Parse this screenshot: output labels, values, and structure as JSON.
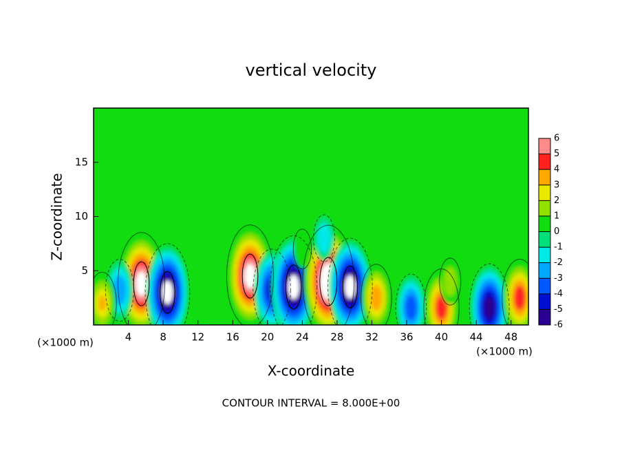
{
  "chart_data": {
    "type": "contour",
    "title": "vertical velocity",
    "x_label": "X-coordinate",
    "y_label": "Z-coordinate",
    "x_unit_left": "(×1000 m)",
    "x_unit_right": "(×1000 m)",
    "footer": "CONTOUR INTERVAL = 8.000E+00",
    "xlim": [
      0,
      50
    ],
    "ylim": [
      0,
      20
    ],
    "xticks": [
      4,
      8,
      12,
      16,
      20,
      24,
      28,
      32,
      36,
      40,
      44,
      48
    ],
    "yticks": [
      5,
      10,
      15
    ],
    "x": [
      5.5,
      8.5,
      3,
      18,
      20.5,
      23,
      27,
      29.5,
      32.5,
      36.5,
      40,
      45.5,
      49,
      26.5,
      41,
      24,
      1
    ],
    "y": [
      3.8,
      3,
      3.2,
      4.5,
      3.2,
      3.5,
      4,
      3.5,
      2.5,
      1.6,
      1.6,
      1.6,
      2.5,
      8,
      4,
      7,
      2
    ],
    "values": [
      7,
      -6.5,
      -3,
      7,
      -5,
      -7,
      8,
      -6.5,
      3.5,
      -3.5,
      4.5,
      -5.5,
      4.5,
      -1.5,
      1.5,
      0.8,
      3
    ],
    "colorbar_ticks": [
      6,
      5,
      4,
      3,
      2,
      1,
      0,
      -1,
      -2,
      -3,
      -4,
      -5,
      -6
    ],
    "colors": [
      "#2a0090",
      "#0010d0",
      "#0058ff",
      "#00a8ff",
      "#00e8e8",
      "#00e07a",
      "#10dc10",
      "#90e000",
      "#e8e800",
      "#ffa800",
      "#ff2020",
      "#ff8a8a"
    ]
  }
}
